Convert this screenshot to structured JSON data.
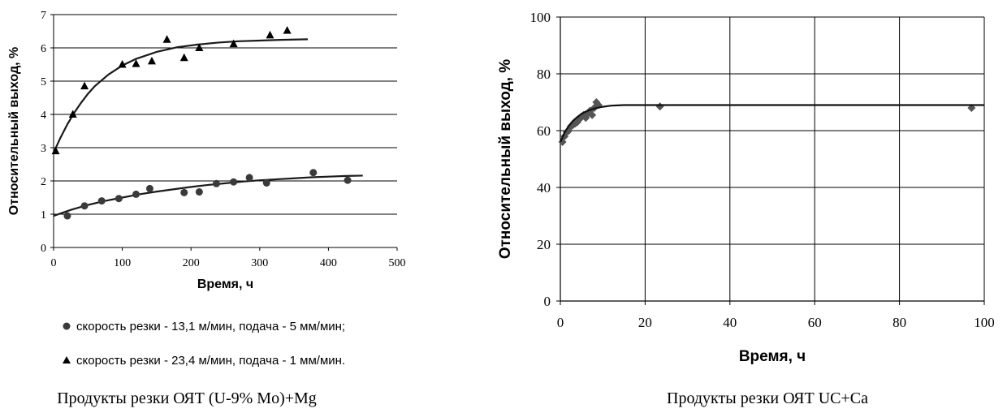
{
  "chart_data": [
    {
      "type": "scatter",
      "title": "",
      "xlabel": "Время, ч",
      "ylabel": "Относительный выход, %",
      "xlim": [
        0,
        500
      ],
      "ylim": [
        0,
        7
      ],
      "x_ticks": [
        0,
        100,
        200,
        300,
        400,
        500
      ],
      "y_ticks": [
        0,
        1,
        2,
        3,
        4,
        5,
        6,
        7
      ],
      "grid": "horizontal",
      "legend_position": "below",
      "caption": "Продукты резки ОЯТ (U-9% Mo)+Mg",
      "series": [
        {
          "name": "скорость резки - 13,1 м/мин, подача - 5 мм/мин;",
          "marker": "circle",
          "color": "#3a3a3a",
          "x": [
            20,
            45,
            70,
            95,
            120,
            140,
            190,
            212,
            237,
            262,
            285,
            310,
            378,
            428
          ],
          "y": [
            0.95,
            1.25,
            1.4,
            1.47,
            1.6,
            1.77,
            1.65,
            1.67,
            1.92,
            1.97,
            2.1,
            1.94,
            2.25,
            2.02
          ],
          "fit": {
            "x": [
              0,
              25,
              50,
              75,
              100,
              125,
              150,
              175,
              200,
              225,
              250,
              275,
              300,
              325,
              350,
              375,
              400,
              425,
              450
            ],
            "y": [
              0.95,
              1.13,
              1.28,
              1.4,
              1.5,
              1.6,
              1.68,
              1.75,
              1.82,
              1.88,
              1.93,
              1.98,
              2.02,
              2.05,
              2.08,
              2.11,
              2.13,
              2.15,
              2.16
            ]
          }
        },
        {
          "name": "скорость резки - 23,4 м/мин, подача  - 1 мм/мин.",
          "marker": "triangle",
          "color": "#000000",
          "x": [
            3,
            28,
            45,
            100,
            120,
            143,
            165,
            190,
            212,
            262,
            315,
            340
          ],
          "y": [
            2.9,
            4.0,
            4.85,
            5.5,
            5.52,
            5.6,
            6.25,
            5.7,
            6.0,
            6.12,
            6.38,
            6.52
          ],
          "fit": {
            "x": [
              0,
              10,
              20,
              30,
              40,
              50,
              60,
              80,
              100,
              120,
              150,
              180,
              210,
              240,
              270,
              300,
              330,
              370
            ],
            "y": [
              2.85,
              3.3,
              3.7,
              4.05,
              4.35,
              4.62,
              4.85,
              5.2,
              5.47,
              5.67,
              5.88,
              6.02,
              6.1,
              6.16,
              6.2,
              6.22,
              6.24,
              6.26
            ]
          }
        }
      ]
    },
    {
      "type": "scatter",
      "title": "",
      "xlabel": "Время, ч",
      "ylabel": "Относительный выход, %",
      "xlim": [
        0,
        100
      ],
      "ylim": [
        0,
        100
      ],
      "x_ticks": [
        0,
        20,
        40,
        60,
        80,
        100
      ],
      "y_ticks": [
        0,
        20,
        40,
        60,
        80,
        100
      ],
      "grid": "both",
      "caption": "Продукты резки ОЯТ UC+Ca",
      "series": [
        {
          "marker": "diamond",
          "color": "#555555",
          "x": [
            0.5,
            1.0,
            1.5,
            2.0,
            2.5,
            3.0,
            3.5,
            4.0,
            4.5,
            5.0,
            5.5,
            6.0,
            6.5,
            7.0,
            7.5,
            8.0,
            8.5,
            9.0,
            23.5,
            97
          ],
          "y": [
            56,
            58,
            59.5,
            60,
            61.5,
            62,
            62.5,
            63,
            64,
            65,
            65.5,
            64.5,
            66,
            67,
            65.5,
            68,
            70,
            69,
            68.5,
            68
          ],
          "fit": {
            "x": [
              0,
              1,
              2,
              3,
              4,
              5,
              6,
              7,
              8,
              10,
              12,
              15,
              100
            ],
            "y": [
              56,
              59.3,
              61.7,
              63.5,
              64.8,
              65.9,
              66.7,
              67.3,
              67.8,
              68.4,
              68.8,
              69.0,
              69.0
            ]
          }
        }
      ]
    }
  ]
}
